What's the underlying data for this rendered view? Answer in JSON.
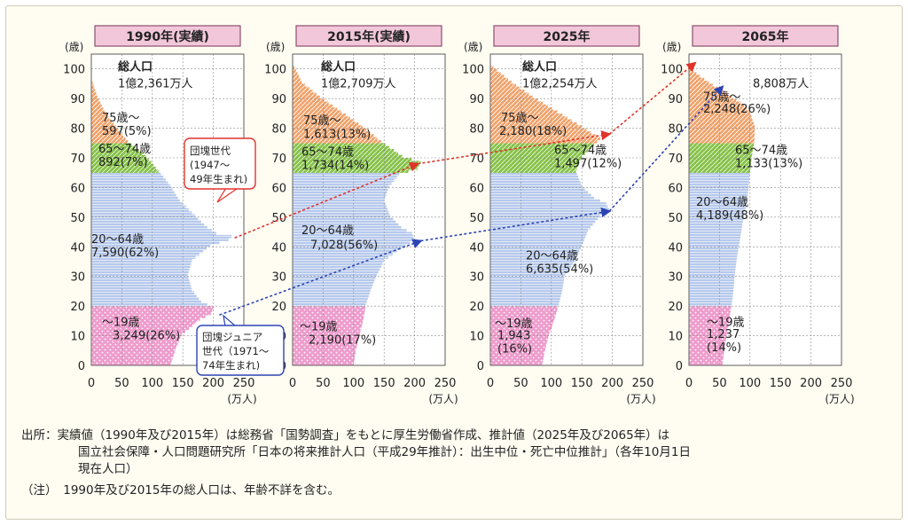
{
  "colors": {
    "u19": "#ee9ccc",
    "a20_64": "#b6c9ec",
    "a65_74": "#86c248",
    "a75": "#f2a26a",
    "header_fill": "#f2c7da",
    "header_border": "#8a4f6c",
    "red_arrow": "#e0332a",
    "blue_arrow": "#2d45b3"
  },
  "chart_data": [
    {
      "type": "bar",
      "orientation": "horizontal",
      "title": "1990年(実績)",
      "ylabel": "(歳)",
      "xlabel": "(万人)",
      "xlim": [
        0,
        250
      ],
      "ylim": [
        0,
        105
      ],
      "y_ticks": [
        0,
        10,
        20,
        30,
        40,
        50,
        60,
        70,
        80,
        90,
        100
      ],
      "x_ticks": [
        0,
        50,
        100,
        150,
        200,
        250
      ],
      "total": {
        "label": "総人口",
        "value": "1億2,361万人"
      },
      "groups": [
        {
          "name": "75歳～",
          "value": "597(5%)"
        },
        {
          "name": "65～74歳",
          "value": "892(7%)"
        },
        {
          "name": "20～64歳",
          "value": "7,590(62%)"
        },
        {
          "name": "～19歳",
          "value": "3,249(26%)"
        }
      ],
      "profile": {
        "age": [
          0,
          5,
          10,
          15,
          17,
          19,
          21,
          25,
          30,
          35,
          40,
          42,
          43,
          44,
          46,
          50,
          55,
          60,
          65,
          70,
          75,
          80,
          85,
          90,
          95
        ],
        "pop": [
          130,
          138,
          148,
          178,
          196,
          200,
          180,
          165,
          158,
          165,
          195,
          225,
          230,
          205,
          190,
          170,
          145,
          130,
          110,
          90,
          60,
          40,
          22,
          10,
          2
        ]
      }
    },
    {
      "type": "bar",
      "orientation": "horizontal",
      "title": "2015年(実績)",
      "ylabel": "(歳)",
      "xlabel": "(万人)",
      "xlim": [
        0,
        250
      ],
      "ylim": [
        0,
        105
      ],
      "y_ticks": [
        0,
        10,
        20,
        30,
        40,
        50,
        60,
        70,
        80,
        90,
        100
      ],
      "x_ticks": [
        0,
        50,
        100,
        150,
        200,
        250
      ],
      "total": {
        "label": "総人口",
        "value": "1億2,709万人"
      },
      "groups": [
        {
          "name": "75歳～",
          "value": "1,613(13%)"
        },
        {
          "name": "65～74歳",
          "value": "1,734(14%)"
        },
        {
          "name": "20～64歳",
          "value": "7,028(56%)"
        },
        {
          "name": "～19歳",
          "value": "2,190(17%)"
        }
      ],
      "profile": {
        "age": [
          0,
          5,
          10,
          15,
          20,
          25,
          30,
          35,
          40,
          42,
          44,
          46,
          50,
          55,
          60,
          64,
          66,
          68,
          70,
          75,
          80,
          85,
          90,
          95,
          100
        ],
        "pop": [
          100,
          104,
          110,
          116,
          120,
          128,
          138,
          150,
          185,
          200,
          196,
          178,
          160,
          150,
          158,
          175,
          205,
          210,
          180,
          145,
          115,
          80,
          45,
          15,
          3
        ]
      }
    },
    {
      "type": "bar",
      "orientation": "horizontal",
      "title": "2025年",
      "ylabel": "(歳)",
      "xlabel": "(万人)",
      "xlim": [
        0,
        250
      ],
      "ylim": [
        0,
        105
      ],
      "y_ticks": [
        0,
        10,
        20,
        30,
        40,
        50,
        60,
        70,
        80,
        90,
        100
      ],
      "x_ticks": [
        0,
        50,
        100,
        150,
        200,
        250
      ],
      "total": {
        "label": "総人口",
        "value": "1億2,254万人"
      },
      "groups": [
        {
          "name": "75歳～",
          "value": "2,180(18%)"
        },
        {
          "name": "65～74歳",
          "value": "1,497(12%)"
        },
        {
          "name": "20～64歳",
          "value": "6,635(54%)"
        },
        {
          "name": "～19歳",
          "value": "1,943(16%)"
        }
      ],
      "profile": {
        "age": [
          0,
          5,
          10,
          15,
          20,
          25,
          30,
          35,
          40,
          45,
          50,
          52,
          54,
          56,
          60,
          65,
          70,
          74,
          76,
          78,
          80,
          85,
          90,
          95,
          100
        ],
        "pop": [
          85,
          90,
          96,
          105,
          112,
          118,
          122,
          140,
          150,
          160,
          180,
          195,
          190,
          170,
          150,
          140,
          150,
          170,
          180,
          165,
          150,
          110,
          70,
          35,
          5
        ]
      }
    },
    {
      "type": "bar",
      "orientation": "horizontal",
      "title": "2065年",
      "ylabel": "(歳)",
      "xlabel": "(万人)",
      "xlim": [
        0,
        250
      ],
      "ylim": [
        0,
        105
      ],
      "y_ticks": [
        0,
        10,
        20,
        30,
        40,
        50,
        60,
        70,
        80,
        90,
        100
      ],
      "x_ticks": [
        0,
        50,
        100,
        150,
        200,
        250
      ],
      "total": {
        "label": "",
        "value": "8,808万人"
      },
      "groups": [
        {
          "name": "75歳～",
          "value": "2,248(26%)"
        },
        {
          "name": "65～74歳",
          "value": "1,133(13%)"
        },
        {
          "name": "20～64歳",
          "value": "4,189(48%)"
        },
        {
          "name": "～19歳",
          "value": "1,237(14%)"
        }
      ],
      "profile": {
        "age": [
          0,
          5,
          10,
          15,
          20,
          25,
          30,
          35,
          40,
          45,
          50,
          55,
          60,
          65,
          70,
          75,
          80,
          85,
          88,
          90,
          92,
          94,
          96,
          98,
          100
        ],
        "pop": [
          55,
          58,
          62,
          66,
          70,
          73,
          75,
          78,
          82,
          86,
          90,
          95,
          98,
          100,
          103,
          107,
          108,
          100,
          85,
          70,
          55,
          40,
          25,
          12,
          3
        ]
      }
    }
  ],
  "callouts": {
    "dankai": {
      "line1": "団塊世代",
      "line2": "(1947～",
      "line3": "49年生まれ)"
    },
    "junior": {
      "line1": "団塊ジュニア",
      "line2": "世代（1971～",
      "line3": "74年生まれ)"
    }
  },
  "notes": {
    "source_1": "出所：実績値（1990年及び2015年）は総務省「国勢調査」をもとに厚生労働省作成、推計値（2025年及び2065年）は",
    "source_2": "国立社会保障・人口問題研究所「日本の将来推計人口（平成29年推計）：出生中位・死亡中位推計」（各年10月1日",
    "source_3": "現在人口）",
    "note_1": "（注）　1990年及び2015年の総人口は、年齢不詳を含む。"
  }
}
